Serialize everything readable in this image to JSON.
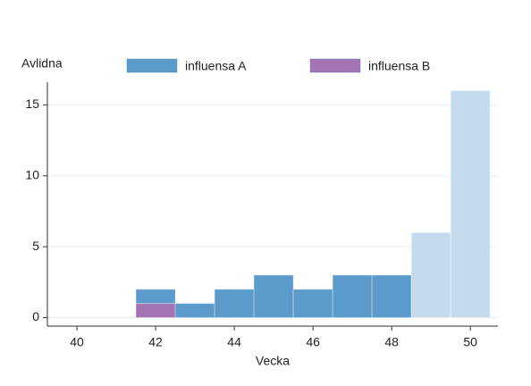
{
  "chart_data": {
    "type": "bar",
    "stacked": true,
    "y_label": "Avlidna",
    "x_label": "Vecka",
    "x": [
      42,
      43,
      44,
      45,
      46,
      47,
      48,
      49,
      50
    ],
    "series": [
      {
        "name": "influensa A",
        "color": "#5b9bcb",
        "colors": [
          "#5b9bcb",
          "#5b9bcb",
          "#5b9bcb",
          "#5b9bcb",
          "#5b9bcb",
          "#5b9bcb",
          "#5b9bcb",
          "#c3dbed",
          "#c3dbed"
        ],
        "values": [
          1,
          1,
          2,
          3,
          2,
          3,
          3,
          6,
          16
        ]
      },
      {
        "name": "influensa B",
        "color": "#a574b4",
        "values": [
          1,
          null,
          null,
          null,
          null,
          null,
          null,
          null,
          null
        ]
      }
    ],
    "xlim": [
      39.25,
      50.7
    ],
    "xticks": [
      40,
      42,
      44,
      46,
      48,
      50
    ],
    "ylim": [
      -0.6,
      16.6
    ],
    "yticks": [
      0,
      5,
      10,
      15
    ],
    "grid": true
  }
}
